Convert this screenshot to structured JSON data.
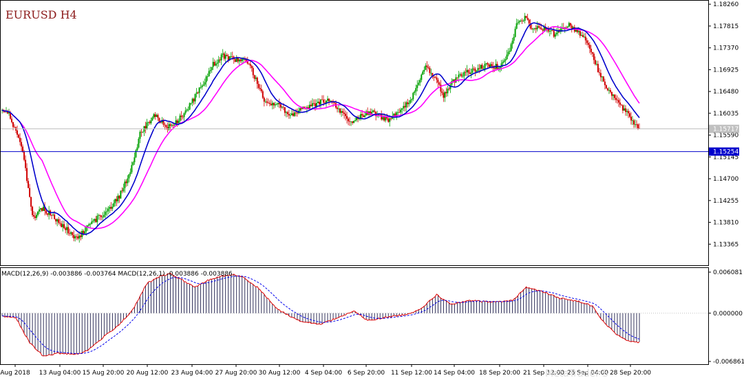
{
  "chart_data": {
    "type": "candlestick",
    "symbol_timeframe": "EURUSD H4",
    "price_axis_ticks": [
      "1.18260",
      "1.17815",
      "1.17370",
      "1.16925",
      "1.16480",
      "1.16035",
      "1.15590",
      "1.15145",
      "1.14700",
      "1.14255",
      "1.13810",
      "1.13365"
    ],
    "price_ticks_values": [
      1.1826,
      1.17815,
      1.1737,
      1.16925,
      1.1648,
      1.16035,
      1.1559,
      1.15145,
      1.147,
      1.14255,
      1.1381,
      1.13365
    ],
    "price_ylim": [
      1.12935,
      1.18332
    ],
    "current_price_label": "1.15717",
    "current_price": 1.15717,
    "hline_label": "1.15254",
    "hline_value": 1.15254,
    "time_axis_labels": [
      "Aug 2018",
      "13 Aug 04:00",
      "15 Aug 20:00",
      "20 Aug 12:00",
      "23 Aug 04:00",
      "27 Aug 20:00",
      "30 Aug 12:00",
      "4 Sep 04:00",
      "6 Sep 20:00",
      "11 Sep 12:00",
      "14 Sep 04:00",
      "18 Sep 20:00",
      "21 Sep 12:00",
      "26 Sep 04:00",
      "28 Sep 20:00"
    ],
    "close_anchors": [
      [
        0,
        1.1605
      ],
      [
        5,
        1.1605
      ],
      [
        15,
        1.1525
      ],
      [
        22,
        1.139
      ],
      [
        30,
        1.141
      ],
      [
        40,
        1.1385
      ],
      [
        50,
        1.1358
      ],
      [
        55,
        1.1345
      ],
      [
        62,
        1.1375
      ],
      [
        75,
        1.14
      ],
      [
        85,
        1.1435
      ],
      [
        93,
        1.1485
      ],
      [
        100,
        1.156
      ],
      [
        110,
        1.16
      ],
      [
        120,
        1.1575
      ],
      [
        128,
        1.159
      ],
      [
        136,
        1.162
      ],
      [
        145,
        1.166
      ],
      [
        152,
        1.17
      ],
      [
        160,
        1.172
      ],
      [
        168,
        1.1715
      ],
      [
        175,
        1.171
      ],
      [
        180,
        1.17
      ],
      [
        190,
        1.163
      ],
      [
        200,
        1.162
      ],
      [
        210,
        1.16
      ],
      [
        217,
        1.161
      ],
      [
        225,
        1.162
      ],
      [
        232,
        1.163
      ],
      [
        240,
        1.1625
      ],
      [
        252,
        1.1585
      ],
      [
        260,
        1.16
      ],
      [
        268,
        1.1605
      ],
      [
        280,
        1.159
      ],
      [
        290,
        1.161
      ],
      [
        300,
        1.165
      ],
      [
        307,
        1.17
      ],
      [
        313,
        1.168
      ],
      [
        320,
        1.164
      ],
      [
        330,
        1.168
      ],
      [
        340,
        1.169
      ],
      [
        350,
        1.17
      ],
      [
        360,
        1.17
      ],
      [
        368,
        1.173
      ],
      [
        373,
        1.1785
      ],
      [
        380,
        1.18
      ],
      [
        383,
        1.1775
      ],
      [
        390,
        1.178
      ],
      [
        400,
        1.1765
      ],
      [
        410,
        1.1785
      ],
      [
        420,
        1.1765
      ],
      [
        426,
        1.174
      ],
      [
        432,
        1.169
      ],
      [
        440,
        1.165
      ],
      [
        448,
        1.162
      ],
      [
        455,
        1.1595
      ],
      [
        460,
        1.1578
      ],
      [
        462,
        1.1572
      ]
    ],
    "candle_count": 463,
    "moving_average_blue": "MA",
    "moving_average_magenta": "MA",
    "macd_label": "MACD(12,26,9) -0.003886 -0.003764 MACD(12,26,1) -0.003886 -0.003886",
    "macd_axis_ticks": [
      "0.006081",
      "0.000000",
      "-0.006861"
    ],
    "macd_ylim": [
      -0.006861,
      0.006081
    ],
    "macd_anchors": [
      [
        0,
        -0.0004
      ],
      [
        10,
        -0.0006
      ],
      [
        20,
        -0.004
      ],
      [
        30,
        -0.0058
      ],
      [
        40,
        -0.0054
      ],
      [
        55,
        -0.0055
      ],
      [
        62,
        -0.005
      ],
      [
        75,
        -0.003
      ],
      [
        85,
        -0.0015
      ],
      [
        95,
        0.0005
      ],
      [
        105,
        0.004
      ],
      [
        115,
        0.005
      ],
      [
        122,
        0.0053
      ],
      [
        130,
        0.0045
      ],
      [
        140,
        0.0035
      ],
      [
        150,
        0.0045
      ],
      [
        160,
        0.005
      ],
      [
        168,
        0.0052
      ],
      [
        175,
        0.0048
      ],
      [
        185,
        0.0035
      ],
      [
        200,
        0.0005
      ],
      [
        215,
        -0.001
      ],
      [
        230,
        -0.0015
      ],
      [
        245,
        -0.0005
      ],
      [
        255,
        0.0003
      ],
      [
        265,
        -0.001
      ],
      [
        280,
        -0.0005
      ],
      [
        295,
        -0.0001
      ],
      [
        305,
        0.0008
      ],
      [
        315,
        0.0025
      ],
      [
        325,
        0.0012
      ],
      [
        340,
        0.0017
      ],
      [
        355,
        0.0015
      ],
      [
        370,
        0.0017
      ],
      [
        380,
        0.0035
      ],
      [
        390,
        0.003
      ],
      [
        405,
        0.002
      ],
      [
        420,
        0.0015
      ],
      [
        428,
        0.001
      ],
      [
        435,
        -0.001
      ],
      [
        445,
        -0.0028
      ],
      [
        455,
        -0.0038
      ],
      [
        462,
        -0.0039
      ]
    ],
    "watermark": "MetaTrader 5"
  }
}
